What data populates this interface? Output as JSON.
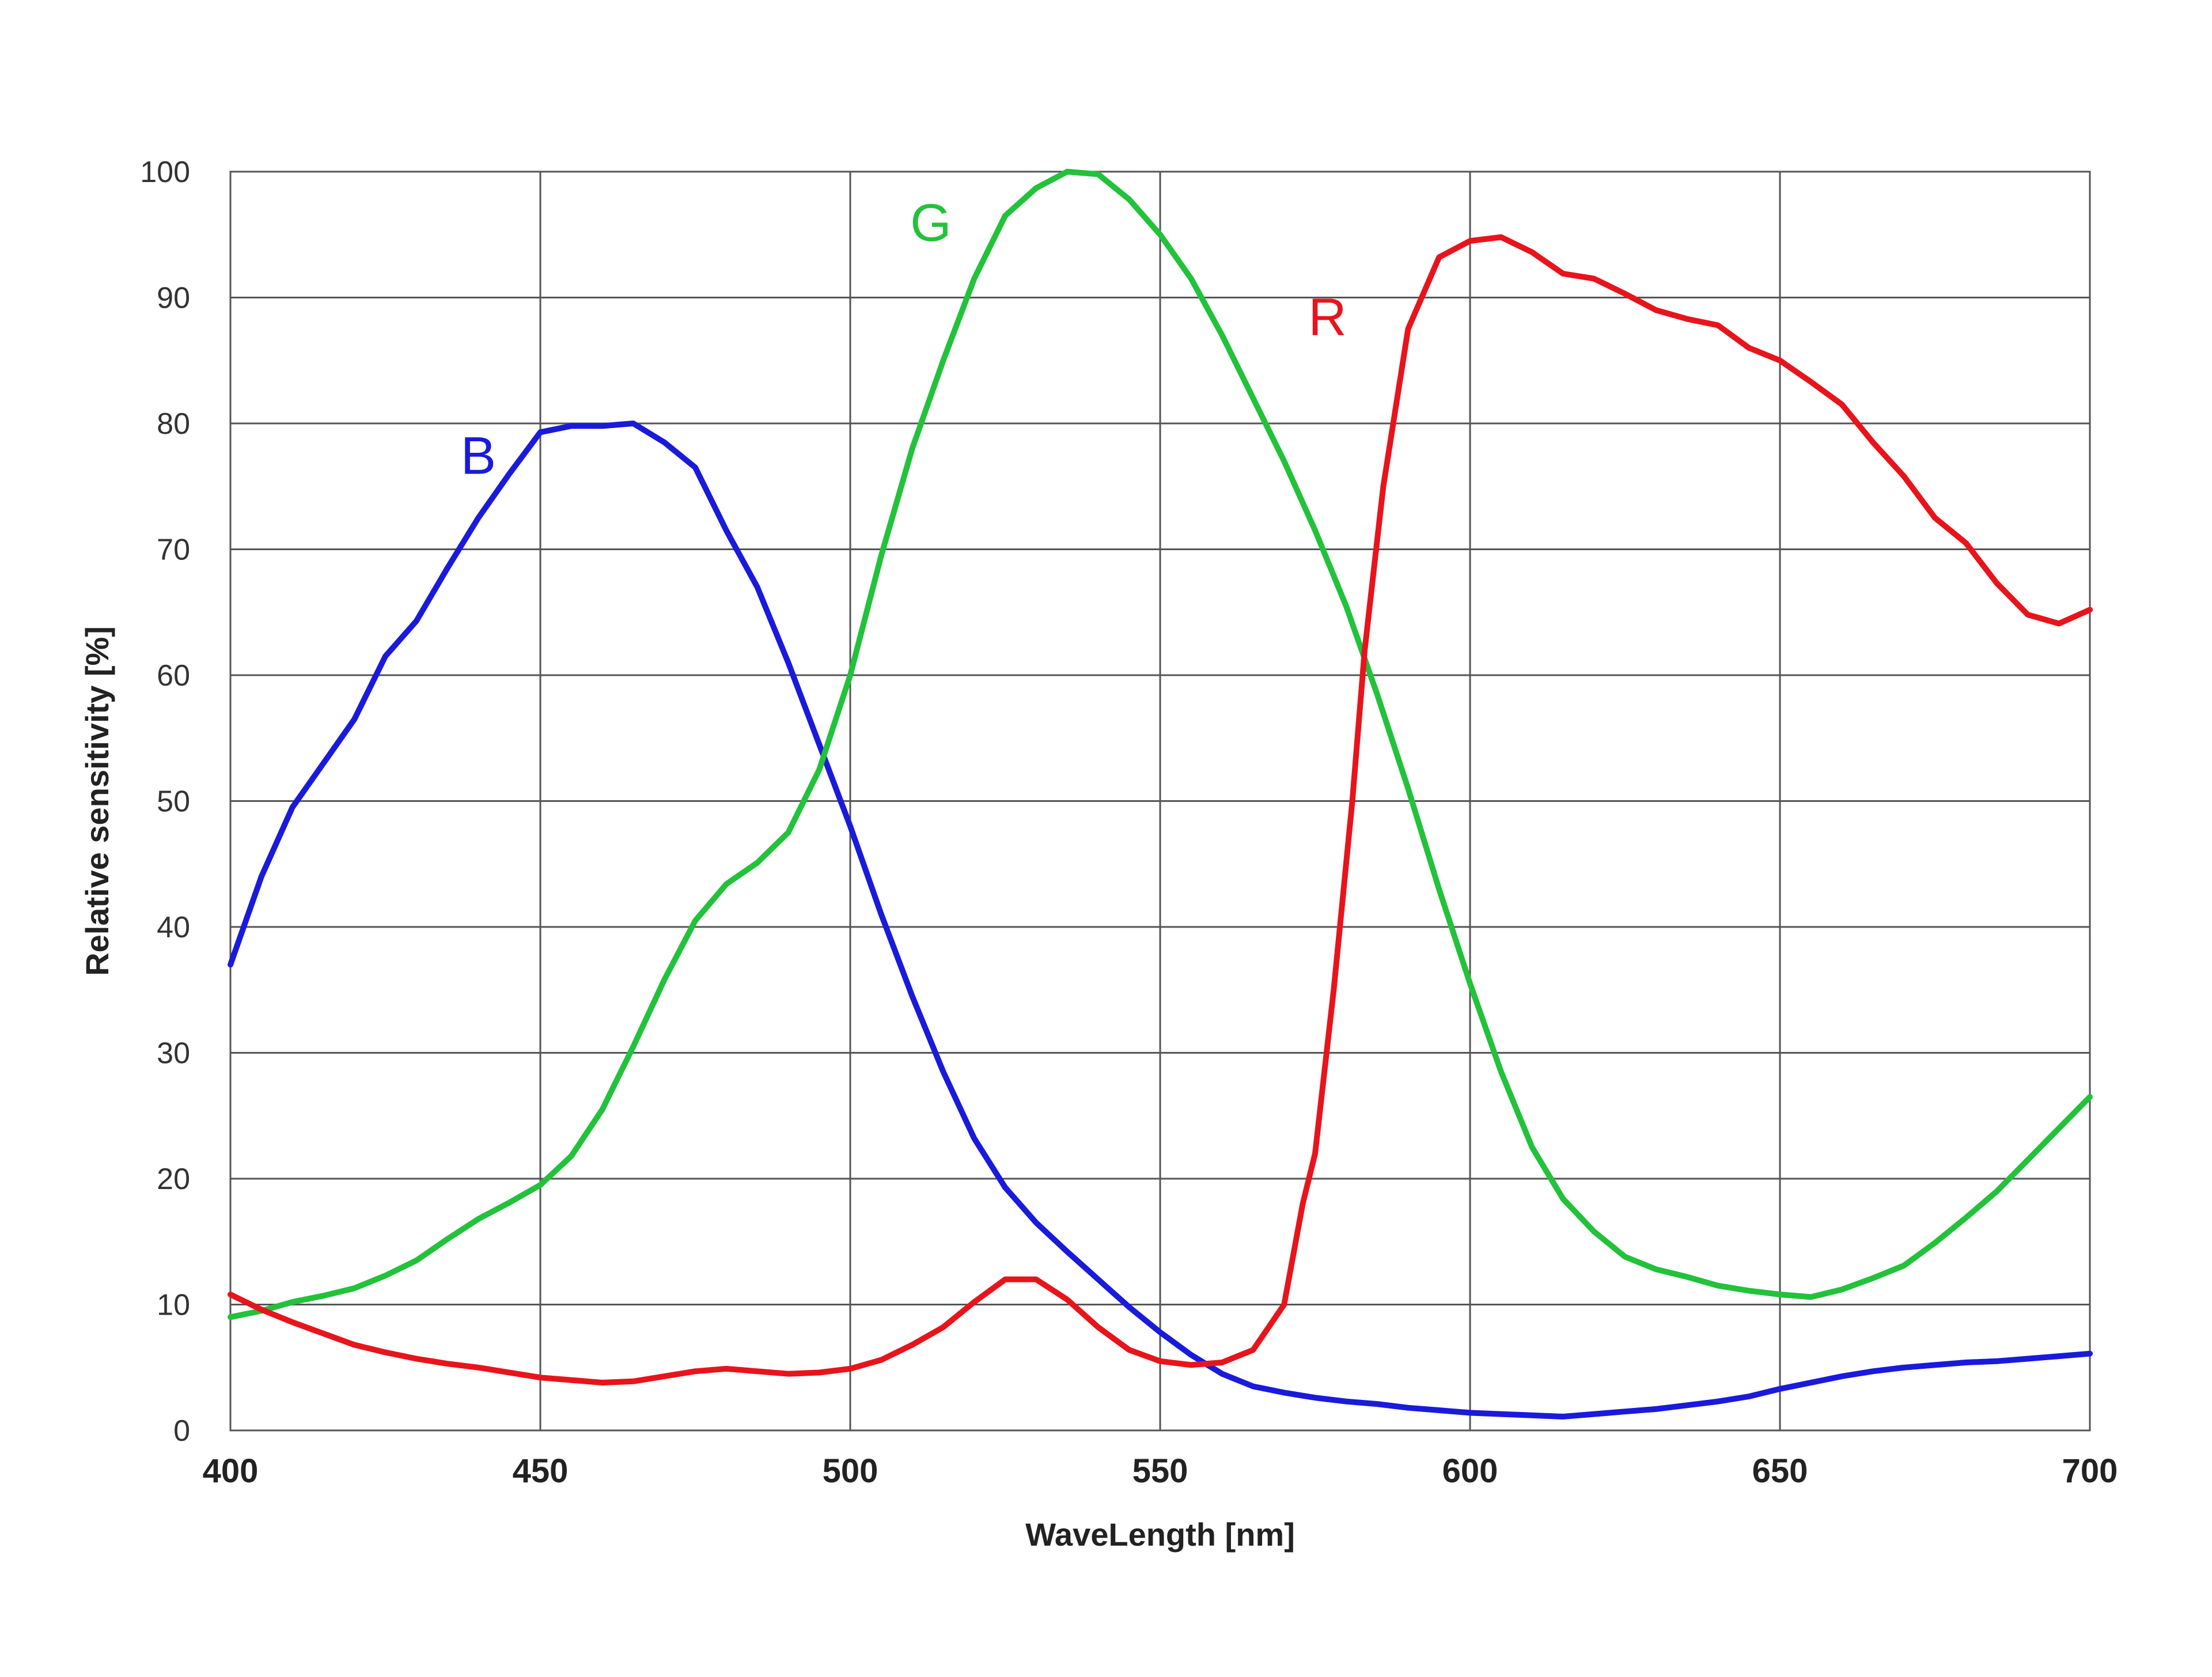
{
  "chart_data": {
    "type": "line",
    "xlabel": "WaveLength [nm]",
    "ylabel": "Relative sensitivity [%]",
    "xlim": [
      400,
      700
    ],
    "ylim": [
      0,
      100
    ],
    "xticks": [
      400,
      450,
      500,
      550,
      600,
      650,
      700
    ],
    "yticks": [
      0,
      10,
      20,
      30,
      40,
      50,
      60,
      70,
      80,
      90,
      100
    ],
    "grid": true,
    "legend": "inline labels near curves",
    "series": [
      {
        "name": "B",
        "color": "#1a1adc",
        "label_pos": [
          440,
          76
        ],
        "points": [
          [
            400,
            37
          ],
          [
            405,
            44
          ],
          [
            410,
            49.5
          ],
          [
            415,
            53
          ],
          [
            420,
            56.5
          ],
          [
            425,
            61.5
          ],
          [
            430,
            64.3
          ],
          [
            435,
            68.5
          ],
          [
            440,
            72.5
          ],
          [
            445,
            76
          ],
          [
            450,
            79.3
          ],
          [
            455,
            79.8
          ],
          [
            460,
            79.8
          ],
          [
            465,
            80
          ],
          [
            470,
            78.5
          ],
          [
            475,
            76.5
          ],
          [
            480,
            71.5
          ],
          [
            485,
            67
          ],
          [
            490,
            61
          ],
          [
            495,
            54.5
          ],
          [
            500,
            48
          ],
          [
            505,
            41
          ],
          [
            510,
            34.5
          ],
          [
            515,
            28.5
          ],
          [
            520,
            23.2
          ],
          [
            525,
            19.3
          ],
          [
            530,
            16.5
          ],
          [
            535,
            14.2
          ],
          [
            540,
            12
          ],
          [
            545,
            9.8
          ],
          [
            550,
            7.8
          ],
          [
            555,
            6
          ],
          [
            560,
            4.5
          ],
          [
            565,
            3.5
          ],
          [
            570,
            3
          ],
          [
            575,
            2.6
          ],
          [
            580,
            2.3
          ],
          [
            585,
            2.1
          ],
          [
            590,
            1.8
          ],
          [
            595,
            1.6
          ],
          [
            600,
            1.4
          ],
          [
            605,
            1.3
          ],
          [
            610,
            1.2
          ],
          [
            615,
            1.1
          ],
          [
            620,
            1.3
          ],
          [
            625,
            1.5
          ],
          [
            630,
            1.7
          ],
          [
            635,
            2
          ],
          [
            640,
            2.3
          ],
          [
            645,
            2.7
          ],
          [
            650,
            3.3
          ],
          [
            655,
            3.8
          ],
          [
            660,
            4.3
          ],
          [
            665,
            4.7
          ],
          [
            670,
            5
          ],
          [
            675,
            5.2
          ],
          [
            680,
            5.4
          ],
          [
            685,
            5.5
          ],
          [
            690,
            5.7
          ],
          [
            695,
            5.9
          ],
          [
            700,
            6.1
          ]
        ]
      },
      {
        "name": "G",
        "color": "#22c23a",
        "label_pos": [
          513,
          94.5
        ],
        "points": [
          [
            400,
            9
          ],
          [
            405,
            9.5
          ],
          [
            410,
            10.2
          ],
          [
            415,
            10.7
          ],
          [
            420,
            11.3
          ],
          [
            425,
            12.3
          ],
          [
            430,
            13.5
          ],
          [
            435,
            15.2
          ],
          [
            440,
            16.8
          ],
          [
            445,
            18.1
          ],
          [
            450,
            19.5
          ],
          [
            455,
            21.8
          ],
          [
            460,
            25.5
          ],
          [
            465,
            30.5
          ],
          [
            470,
            35.8
          ],
          [
            475,
            40.5
          ],
          [
            480,
            43.4
          ],
          [
            485,
            45.1
          ],
          [
            490,
            47.5
          ],
          [
            495,
            52.5
          ],
          [
            500,
            60
          ],
          [
            505,
            69.5
          ],
          [
            510,
            78
          ],
          [
            515,
            85
          ],
          [
            520,
            91.5
          ],
          [
            525,
            96.5
          ],
          [
            530,
            98.7
          ],
          [
            535,
            100
          ],
          [
            540,
            99.8
          ],
          [
            545,
            97.8
          ],
          [
            550,
            95
          ],
          [
            555,
            91.5
          ],
          [
            560,
            87
          ],
          [
            565,
            82
          ],
          [
            570,
            77
          ],
          [
            575,
            71.5
          ],
          [
            580,
            65.5
          ],
          [
            585,
            58.5
          ],
          [
            590,
            51
          ],
          [
            595,
            43
          ],
          [
            600,
            35.5
          ],
          [
            605,
            28.5
          ],
          [
            610,
            22.5
          ],
          [
            615,
            18.4
          ],
          [
            620,
            15.8
          ],
          [
            625,
            13.8
          ],
          [
            630,
            12.8
          ],
          [
            635,
            12.2
          ],
          [
            640,
            11.5
          ],
          [
            645,
            11.1
          ],
          [
            650,
            10.8
          ],
          [
            655,
            10.6
          ],
          [
            660,
            11.2
          ],
          [
            665,
            12.1
          ],
          [
            670,
            13.1
          ],
          [
            675,
            14.9
          ],
          [
            680,
            16.9
          ],
          [
            685,
            19
          ],
          [
            690,
            21.5
          ],
          [
            695,
            24
          ],
          [
            700,
            26.5
          ]
        ]
      },
      {
        "name": "R",
        "color": "#e8141c",
        "label_pos": [
          577,
          87
        ],
        "points": [
          [
            400,
            10.8
          ],
          [
            405,
            9.6
          ],
          [
            410,
            8.6
          ],
          [
            415,
            7.7
          ],
          [
            420,
            6.8
          ],
          [
            425,
            6.2
          ],
          [
            430,
            5.7
          ],
          [
            435,
            5.3
          ],
          [
            440,
            5
          ],
          [
            445,
            4.6
          ],
          [
            450,
            4.2
          ],
          [
            455,
            4
          ],
          [
            460,
            3.8
          ],
          [
            465,
            3.9
          ],
          [
            470,
            4.3
          ],
          [
            475,
            4.7
          ],
          [
            480,
            4.9
          ],
          [
            485,
            4.7
          ],
          [
            490,
            4.5
          ],
          [
            495,
            4.6
          ],
          [
            500,
            4.9
          ],
          [
            505,
            5.6
          ],
          [
            510,
            6.8
          ],
          [
            515,
            8.2
          ],
          [
            520,
            10.2
          ],
          [
            525,
            12
          ],
          [
            530,
            12
          ],
          [
            535,
            10.4
          ],
          [
            540,
            8.2
          ],
          [
            545,
            6.4
          ],
          [
            550,
            5.5
          ],
          [
            555,
            5.2
          ],
          [
            560,
            5.4
          ],
          [
            565,
            6.4
          ],
          [
            570,
            10
          ],
          [
            573,
            18
          ],
          [
            575,
            22
          ],
          [
            578,
            35
          ],
          [
            581,
            50
          ],
          [
            583,
            62
          ],
          [
            586,
            75
          ],
          [
            590,
            87.5
          ],
          [
            595,
            93.2
          ],
          [
            600,
            94.5
          ],
          [
            605,
            94.8
          ],
          [
            610,
            93.6
          ],
          [
            615,
            91.9
          ],
          [
            620,
            91.5
          ],
          [
            625,
            90.3
          ],
          [
            630,
            89
          ],
          [
            635,
            88.3
          ],
          [
            640,
            87.8
          ],
          [
            645,
            86
          ],
          [
            650,
            85
          ],
          [
            655,
            83.3
          ],
          [
            660,
            81.5
          ],
          [
            665,
            78.5
          ],
          [
            670,
            75.8
          ],
          [
            675,
            72.5
          ],
          [
            680,
            70.5
          ],
          [
            685,
            67.3
          ],
          [
            690,
            64.8
          ],
          [
            695,
            64.1
          ],
          [
            700,
            65.2
          ]
        ]
      }
    ]
  }
}
